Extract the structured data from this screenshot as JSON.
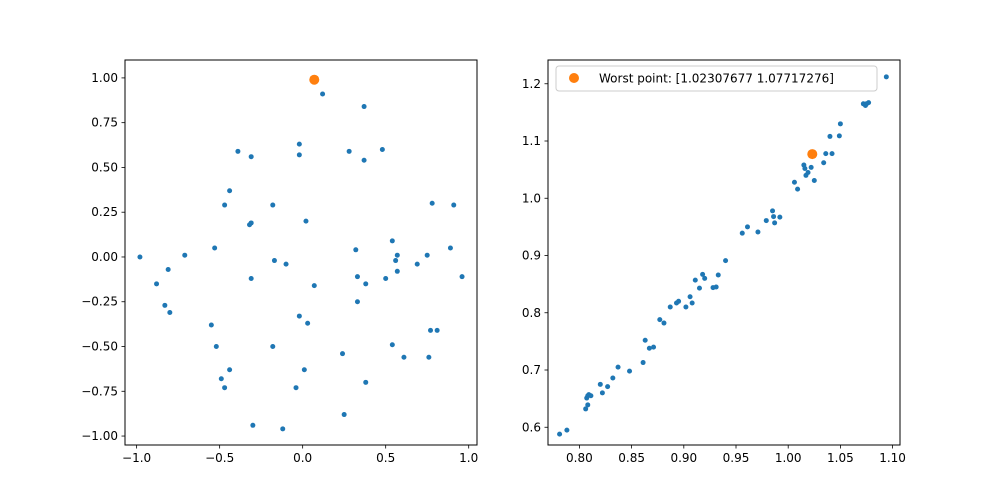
{
  "figure": {
    "background": "#ffffff",
    "point_color": "#1f77b4",
    "highlight_color": "#ff7f0e"
  },
  "chart_data": [
    {
      "type": "scatter",
      "title": "",
      "xlabel": "",
      "ylabel": "",
      "xlim": [
        -1.07,
        1.05
      ],
      "ylim": [
        -1.05,
        1.1
      ],
      "xticks": [
        -1.0,
        -0.5,
        0.0,
        0.5,
        1.0
      ],
      "xtick_labels": [
        "−1.0",
        "−0.5",
        "0.0",
        "0.5",
        "1.0"
      ],
      "yticks": [
        -1.0,
        -0.75,
        -0.5,
        -0.25,
        0.0,
        0.25,
        0.5,
        0.75,
        1.0
      ],
      "ytick_labels": [
        "−1.00",
        "−0.75",
        "−0.50",
        "−0.25",
        "0.00",
        "0.25",
        "0.50",
        "0.75",
        "1.00"
      ],
      "grid": false,
      "series": [
        {
          "color": "#1f77b4",
          "marker_size": "small",
          "points": [
            [
              0.12,
              0.91
            ],
            [
              0.37,
              0.84
            ],
            [
              -0.02,
              0.63
            ],
            [
              -0.39,
              0.59
            ],
            [
              0.28,
              0.59
            ],
            [
              0.48,
              0.6
            ],
            [
              -0.02,
              0.57
            ],
            [
              -0.31,
              0.56
            ],
            [
              0.37,
              0.54
            ],
            [
              -0.44,
              0.37
            ],
            [
              -0.47,
              0.29
            ],
            [
              -0.18,
              0.29
            ],
            [
              0.78,
              0.3
            ],
            [
              0.91,
              0.29
            ],
            [
              0.02,
              0.2
            ],
            [
              -0.31,
              0.19
            ],
            [
              -0.32,
              0.18
            ],
            [
              0.54,
              0.09
            ],
            [
              -0.53,
              0.05
            ],
            [
              0.32,
              0.04
            ],
            [
              0.89,
              0.05
            ],
            [
              -0.98,
              0.0
            ],
            [
              -0.71,
              0.01
            ],
            [
              0.57,
              0.01
            ],
            [
              0.75,
              0.01
            ],
            [
              -0.17,
              -0.02
            ],
            [
              -0.1,
              -0.04
            ],
            [
              0.56,
              -0.02
            ],
            [
              0.69,
              -0.04
            ],
            [
              -0.81,
              -0.07
            ],
            [
              0.57,
              -0.08
            ],
            [
              -0.31,
              -0.12
            ],
            [
              0.33,
              -0.11
            ],
            [
              0.5,
              -0.12
            ],
            [
              0.96,
              -0.11
            ],
            [
              -0.88,
              -0.15
            ],
            [
              0.07,
              -0.16
            ],
            [
              0.38,
              -0.15
            ],
            [
              0.33,
              -0.25
            ],
            [
              -0.83,
              -0.27
            ],
            [
              -0.8,
              -0.31
            ],
            [
              -0.02,
              -0.33
            ],
            [
              0.03,
              -0.37
            ],
            [
              -0.55,
              -0.38
            ],
            [
              0.77,
              -0.41
            ],
            [
              0.81,
              -0.41
            ],
            [
              0.54,
              -0.49
            ],
            [
              -0.52,
              -0.5
            ],
            [
              -0.18,
              -0.5
            ],
            [
              0.24,
              -0.54
            ],
            [
              0.61,
              -0.56
            ],
            [
              0.76,
              -0.56
            ],
            [
              -0.44,
              -0.63
            ],
            [
              0.01,
              -0.63
            ],
            [
              -0.49,
              -0.68
            ],
            [
              0.38,
              -0.7
            ],
            [
              -0.47,
              -0.73
            ],
            [
              -0.04,
              -0.73
            ],
            [
              0.25,
              -0.88
            ],
            [
              -0.3,
              -0.94
            ],
            [
              -0.12,
              -0.96
            ]
          ]
        },
        {
          "color": "#ff7f0e",
          "marker_size": "large",
          "points": [
            [
              0.07,
              0.99
            ]
          ]
        }
      ]
    },
    {
      "type": "scatter",
      "title": "",
      "xlabel": "",
      "ylabel": "",
      "xlim": [
        0.7699,
        1.1071
      ],
      "ylim": [
        0.569,
        1.2415
      ],
      "xticks": [
        0.8,
        0.85,
        0.9,
        0.95,
        1.0,
        1.05,
        1.1
      ],
      "xtick_labels": [
        "0.80",
        "0.85",
        "0.90",
        "0.95",
        "1.00",
        "1.05",
        "1.10"
      ],
      "yticks": [
        0.6,
        0.7,
        0.8,
        0.9,
        1.0,
        1.1,
        1.2
      ],
      "ytick_labels": [
        "0.6",
        "0.7",
        "0.8",
        "0.9",
        "1.0",
        "1.1",
        "1.2"
      ],
      "grid": false,
      "legend": {
        "placement": "upper-left",
        "entries": [
          "Worst point: [1.02307677 1.07717276]"
        ]
      },
      "series": [
        {
          "color": "#1f77b4",
          "marker_size": "small",
          "points": [
            [
              0.781,
              0.588
            ],
            [
              0.788,
              0.595
            ],
            [
              0.806,
              0.632
            ],
            [
              0.808,
              0.639
            ],
            [
              0.807,
              0.651
            ],
            [
              0.809,
              0.657
            ],
            [
              0.808,
              0.655
            ],
            [
              0.811,
              0.655
            ],
            [
              0.82,
              0.675
            ],
            [
              0.822,
              0.66
            ],
            [
              0.827,
              0.671
            ],
            [
              0.832,
              0.686
            ],
            [
              0.837,
              0.705
            ],
            [
              0.848,
              0.698
            ],
            [
              0.861,
              0.713
            ],
            [
              0.863,
              0.752
            ],
            [
              0.867,
              0.738
            ],
            [
              0.871,
              0.74
            ],
            [
              0.877,
              0.788
            ],
            [
              0.881,
              0.782
            ],
            [
              0.887,
              0.81
            ],
            [
              0.893,
              0.817
            ],
            [
              0.895,
              0.82
            ],
            [
              0.902,
              0.81
            ],
            [
              0.906,
              0.828
            ],
            [
              0.908,
              0.817
            ],
            [
              0.911,
              0.857
            ],
            [
              0.915,
              0.843
            ],
            [
              0.918,
              0.867
            ],
            [
              0.92,
              0.86
            ],
            [
              0.928,
              0.844
            ],
            [
              0.931,
              0.845
            ],
            [
              0.933,
              0.866
            ],
            [
              0.94,
              0.891
            ],
            [
              0.956,
              0.939
            ],
            [
              0.961,
              0.95
            ],
            [
              0.971,
              0.941
            ],
            [
              0.979,
              0.961
            ],
            [
              0.985,
              0.978
            ],
            [
              0.986,
              0.968
            ],
            [
              0.987,
              0.957
            ],
            [
              0.992,
              0.967
            ],
            [
              1.006,
              1.028
            ],
            [
              1.009,
              1.016
            ],
            [
              1.015,
              1.058
            ],
            [
              1.016,
              1.052
            ],
            [
              1.017,
              1.04
            ],
            [
              1.019,
              1.045
            ],
            [
              1.022,
              1.054
            ],
            [
              1.025,
              1.031
            ],
            [
              1.034,
              1.062
            ],
            [
              1.036,
              1.078
            ],
            [
              1.04,
              1.108
            ],
            [
              1.042,
              1.078
            ],
            [
              1.049,
              1.109
            ],
            [
              1.05,
              1.13
            ],
            [
              1.072,
              1.165
            ],
            [
              1.074,
              1.162
            ],
            [
              1.075,
              1.165
            ],
            [
              1.077,
              1.167
            ],
            [
              1.094,
              1.212
            ]
          ]
        },
        {
          "name": "Worst point: [1.02307677 1.07717276]",
          "color": "#ff7f0e",
          "marker_size": "large",
          "points": [
            [
              1.02307677,
              1.07717276
            ]
          ]
        }
      ]
    }
  ]
}
